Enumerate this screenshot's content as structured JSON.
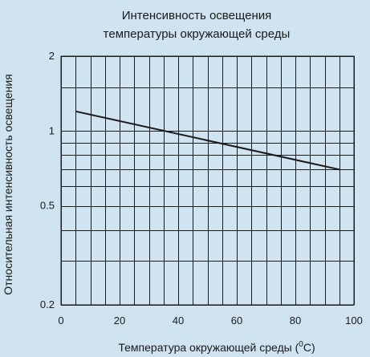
{
  "chart_data": {
    "type": "line",
    "title_lines": [
      "Интенсивность освещения",
      "температуры окружающей среды"
    ],
    "xlabel": "Температура окружающей среды (",
    "xlabel_unit_sup": "0",
    "xlabel_unit": "C)",
    "ylabel": "Относительная интенсивность освещения",
    "xlim": [
      0,
      100
    ],
    "ylim": [
      0.2,
      2
    ],
    "yscale": "log",
    "x_ticks": [
      0,
      20,
      40,
      60,
      80,
      100
    ],
    "y_ticks": [
      0.2,
      0.5,
      1,
      2
    ],
    "y_tick_labels": [
      "0.2",
      "0.5",
      "1",
      "2"
    ],
    "x_grid_step": 5,
    "y_grid_values": [
      0.2,
      0.3,
      0.4,
      0.5,
      0.6,
      0.7,
      0.8,
      0.9,
      1,
      1.5,
      2
    ],
    "grid": true,
    "series": [
      {
        "x": [
          5,
          95
        ],
        "y": [
          1.2,
          0.7
        ]
      }
    ]
  }
}
